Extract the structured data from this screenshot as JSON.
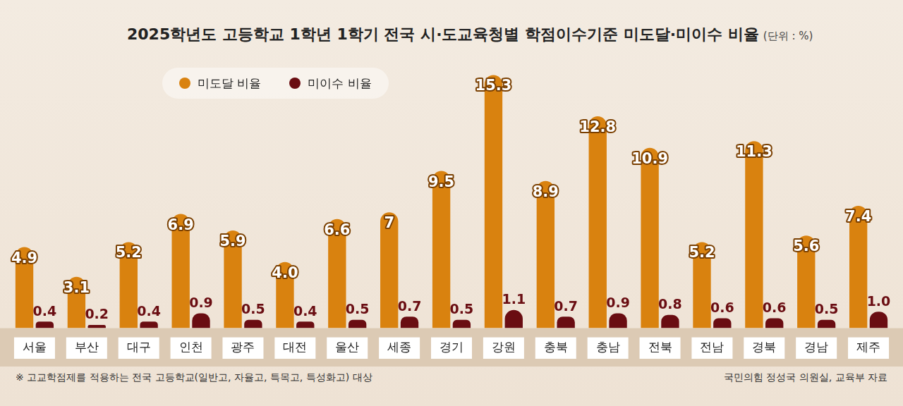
{
  "chart_data": {
    "type": "bar",
    "title": "2025학년도 고등학교 1학년 1학기 전국 시·도교육청별 학점이수기준 미도달·미이수 비율",
    "subtitle": "(단위 : %)",
    "annotations": [
      "※ 고교학점제를 적용하는 전국 고등학교(일반고, 자율고, 특목고, 특성화고) 대상",
      "국민의힘 정성국 의원실, 교육부 자료"
    ],
    "categories": [
      "서울",
      "부산",
      "대구",
      "인천",
      "광주",
      "대전",
      "울산",
      "세종",
      "경기",
      "강원",
      "충북",
      "충남",
      "전북",
      "전남",
      "경북",
      "경남",
      "제주"
    ],
    "series": [
      {
        "name": "미도달 비율",
        "color": "#d9820f",
        "values": [
          4.9,
          3.1,
          5.2,
          6.9,
          5.9,
          4.0,
          6.6,
          7,
          9.5,
          15.3,
          8.9,
          12.8,
          10.9,
          5.2,
          11.3,
          5.6,
          7.4
        ],
        "value_labels": [
          "4.9",
          "3.1",
          "5.2",
          "6.9",
          "5.9",
          "4.0",
          "6.6",
          "7",
          "9.5",
          "15.3",
          "8.9",
          "12.8",
          "10.9",
          "5.2",
          "11.3",
          "5.6",
          "7.4"
        ]
      },
      {
        "name": "미이수 비율",
        "color": "#6a0d12",
        "values": [
          0.4,
          0.2,
          0.4,
          0.9,
          0.5,
          0.4,
          0.5,
          0.7,
          0.5,
          1.1,
          0.7,
          0.9,
          0.8,
          0.6,
          0.6,
          0.5,
          1.0
        ],
        "value_labels": [
          "0.4",
          "0.2",
          "0.4",
          "0.9",
          "0.5",
          "0.4",
          "0.5",
          "0.7",
          "0.5",
          "1.1",
          "0.7",
          "0.9",
          "0.8",
          "0.6",
          "0.6",
          "0.5",
          "1.0"
        ]
      }
    ],
    "ylim": [
      0,
      16
    ],
    "grid": false,
    "legend": "upper left",
    "data_labels": true,
    "tick_labels": "x"
  }
}
